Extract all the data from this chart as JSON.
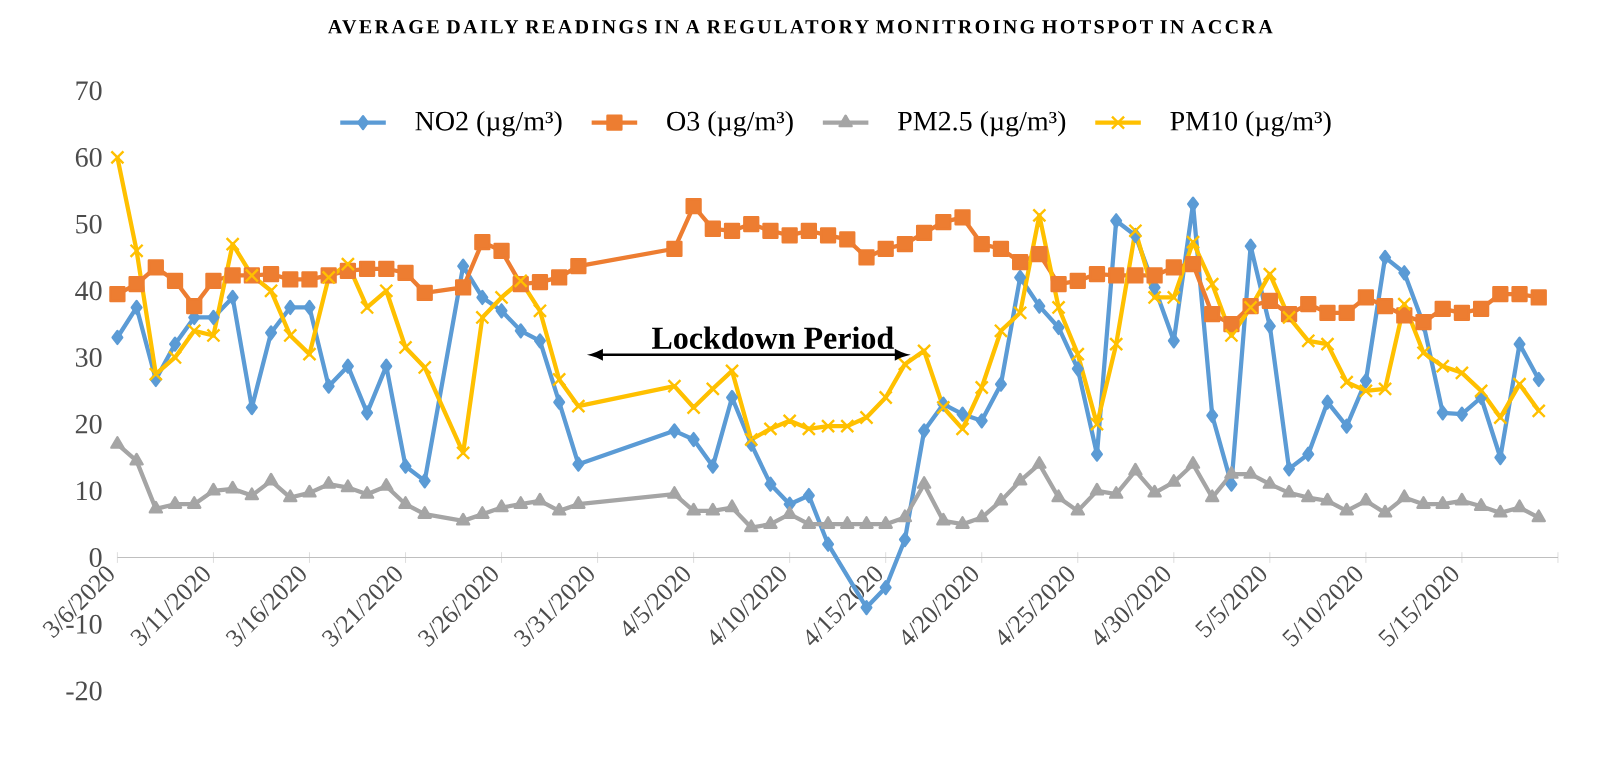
{
  "chart_data": {
    "type": "line",
    "title": "AVERAGE DAILY READINGS IN A REGULATORY MONITROING HOTSPOT IN ACCRA",
    "x": [
      "2020-03-06",
      "2020-03-07",
      "2020-03-08",
      "2020-03-09",
      "2020-03-10",
      "2020-03-11",
      "2020-03-12",
      "2020-03-13",
      "2020-03-14",
      "2020-03-15",
      "2020-03-16",
      "2020-03-17",
      "2020-03-18",
      "2020-03-19",
      "2020-03-20",
      "2020-03-21",
      "2020-03-22",
      "2020-03-24",
      "2020-03-25",
      "2020-03-26",
      "2020-03-27",
      "2020-03-28",
      "2020-03-29",
      "2020-03-30",
      "2020-04-04",
      "2020-04-05",
      "2020-04-06",
      "2020-04-07",
      "2020-04-08",
      "2020-04-09",
      "2020-04-10",
      "2020-04-11",
      "2020-04-12",
      "2020-04-13",
      "2020-04-14",
      "2020-04-15",
      "2020-04-16",
      "2020-04-17",
      "2020-04-18",
      "2020-04-19",
      "2020-04-20",
      "2020-04-21",
      "2020-04-22",
      "2020-04-23",
      "2020-04-24",
      "2020-04-25",
      "2020-04-26",
      "2020-04-27",
      "2020-04-28",
      "2020-04-29",
      "2020-04-30",
      "2020-05-01",
      "2020-05-02",
      "2020-05-03",
      "2020-05-04",
      "2020-05-05",
      "2020-05-06",
      "2020-05-07",
      "2020-05-08",
      "2020-05-09",
      "2020-05-10",
      "2020-05-11",
      "2020-05-12",
      "2020-05-13",
      "2020-05-14",
      "2020-05-15",
      "2020-05-16",
      "2020-05-17",
      "2020-05-18",
      "2020-05-19"
    ],
    "series": [
      {
        "name": "NO2 (µg/m³)",
        "color": "#5b9bd5",
        "marker": "diamond",
        "x": [
          "2020-03-06",
          "2020-03-07",
          "2020-03-08",
          "2020-03-09",
          "2020-03-10",
          "2020-03-11",
          "2020-03-12",
          "2020-03-13",
          "2020-03-14",
          "2020-03-15",
          "2020-03-16",
          "2020-03-17",
          "2020-03-18",
          "2020-03-19",
          "2020-03-20",
          "2020-03-21",
          "2020-03-22",
          "2020-03-24",
          "2020-03-25",
          "2020-03-26",
          "2020-03-27",
          "2020-03-28",
          "2020-03-29",
          "2020-03-30",
          "2020-04-04",
          "2020-04-05",
          "2020-04-06",
          "2020-04-07",
          "2020-04-08",
          "2020-04-09",
          "2020-04-10",
          "2020-04-11",
          "2020-04-12",
          "2020-04-14",
          "2020-04-15",
          "2020-04-16",
          "2020-04-17",
          "2020-04-18",
          "2020-04-19",
          "2020-04-20",
          "2020-04-21",
          "2020-04-22",
          "2020-04-23",
          "2020-04-24",
          "2020-04-25",
          "2020-04-26",
          "2020-04-27",
          "2020-04-28",
          "2020-04-29",
          "2020-04-30",
          "2020-05-01",
          "2020-05-02",
          "2020-05-03",
          "2020-05-04",
          "2020-05-05",
          "2020-05-06",
          "2020-05-07",
          "2020-05-08",
          "2020-05-09",
          "2020-05-10",
          "2020-05-11",
          "2020-05-12",
          "2020-05-13",
          "2020-05-14",
          "2020-05-15",
          "2020-05-16",
          "2020-05-17",
          "2020-05-18",
          "2020-05-19"
        ],
        "values": [
          33,
          37.5,
          26.7,
          32,
          36,
          36,
          39,
          22.5,
          33.7,
          37.5,
          37.5,
          25.7,
          28.7,
          21.7,
          28.7,
          13.7,
          11.5,
          43.7,
          39,
          37,
          34,
          32.5,
          23.3,
          14,
          19,
          17.7,
          13.7,
          24,
          17,
          11,
          8,
          9.3,
          2,
          -7.5,
          -4.5,
          2.7,
          19,
          23,
          21.5,
          20.5,
          26,
          42,
          37.7,
          34.5,
          28.3,
          15.5,
          50.5,
          48.3,
          40.5,
          32.5,
          53,
          21.3,
          11,
          46.7,
          34.7,
          13.3,
          15.5,
          23.3,
          19.7,
          26.5,
          45,
          42.7,
          35,
          21.7,
          21.5,
          24,
          15,
          32,
          26.7
        ]
      },
      {
        "name": "O3 (µg/m³)",
        "color": "#ed7d31",
        "marker": "square",
        "values": [
          39.5,
          41,
          43.5,
          41.5,
          37.7,
          41.5,
          42.3,
          42.3,
          42.5,
          41.7,
          41.7,
          42.3,
          43,
          43.3,
          43.3,
          42.7,
          39.7,
          40.5,
          47.3,
          46,
          41,
          41.3,
          42,
          43.7,
          46.3,
          52.7,
          49.3,
          49,
          50,
          49,
          48.3,
          49,
          48.3,
          47.7,
          45,
          46.3,
          47,
          48.7,
          50.3,
          51,
          47,
          46.3,
          44.3,
          45.5,
          41,
          41.5,
          42.5,
          42.3,
          42.3,
          42.3,
          43.5,
          44,
          36.5,
          35,
          37.7,
          38.5,
          36.5,
          38,
          36.7,
          36.7,
          39,
          37.7,
          36.3,
          35.3,
          37.3,
          36.7,
          37.3,
          39.5,
          39.5,
          39
        ]
      },
      {
        "name": "PM2.5 (µg/m³)",
        "color": "#a5a5a5",
        "marker": "triangle",
        "values": [
          17,
          14.5,
          7.3,
          8,
          8,
          10,
          10.3,
          9.3,
          11.5,
          9,
          9.7,
          11,
          10.5,
          9.5,
          10.7,
          8,
          6.5,
          5.5,
          6.5,
          7.5,
          8,
          8.5,
          7,
          8,
          9.5,
          7,
          7,
          7.5,
          4.5,
          5,
          6.5,
          5,
          5,
          5,
          5,
          5,
          6,
          11,
          5.5,
          5,
          6,
          8.5,
          11.5,
          14,
          9,
          7,
          10,
          9.5,
          13,
          9.7,
          11.3,
          14,
          9,
          12.5,
          12.5,
          11,
          9.7,
          9,
          8.5,
          7,
          8.5,
          6.7,
          9,
          8,
          8,
          8.5,
          7.7,
          6.7,
          7.5,
          6
        ]
      },
      {
        "name": "PM10 (µg/m³)",
        "color": "#ffc000",
        "marker": "cross",
        "values": [
          60,
          46,
          27.5,
          30,
          34,
          33.3,
          47,
          42.3,
          40,
          33.3,
          30.5,
          42,
          44,
          37.5,
          40,
          31.5,
          28.5,
          15.7,
          36,
          39,
          41.5,
          37,
          26.7,
          22.7,
          25.7,
          22.5,
          25.3,
          28,
          17.7,
          19.3,
          20.5,
          19.3,
          19.7,
          19.7,
          21,
          24,
          29,
          31,
          22.5,
          19.3,
          25.5,
          34,
          36.7,
          51.3,
          37.5,
          30.5,
          20,
          32,
          49,
          39,
          39,
          47.3,
          41,
          33.3,
          37.5,
          42.5,
          36,
          32.5,
          32,
          26.3,
          25,
          25.3,
          38,
          30.7,
          28.7,
          27.7,
          25,
          21,
          26,
          22
        ]
      }
    ],
    "xlim": [
      "2020-03-06",
      "2020-05-20"
    ],
    "xticks": [
      {
        "value": "2020-03-06",
        "label": "3/6/2020"
      },
      {
        "value": "2020-03-11",
        "label": "3/11/2020"
      },
      {
        "value": "2020-03-16",
        "label": "3/16/2020"
      },
      {
        "value": "2020-03-21",
        "label": "3/21/2020"
      },
      {
        "value": "2020-03-26",
        "label": "3/26/2020"
      },
      {
        "value": "2020-03-31",
        "label": "3/31/2020"
      },
      {
        "value": "2020-04-05",
        "label": "4/5/2020"
      },
      {
        "value": "2020-04-10",
        "label": "4/10/2020"
      },
      {
        "value": "2020-04-15",
        "label": "4/15/2020"
      },
      {
        "value": "2020-04-20",
        "label": "4/20/2020"
      },
      {
        "value": "2020-04-25",
        "label": "4/25/2020"
      },
      {
        "value": "2020-04-30",
        "label": "4/30/2020"
      },
      {
        "value": "2020-05-05",
        "label": "5/5/2020"
      },
      {
        "value": "2020-05-10",
        "label": "5/10/2020"
      },
      {
        "value": "2020-05-15",
        "label": "5/15/2020"
      },
      {
        "value": "2020-05-20",
        "label": null
      }
    ],
    "ylim": [
      -20,
      70
    ],
    "yticks": [
      -20,
      -10,
      0,
      10,
      20,
      30,
      40,
      50,
      60,
      70
    ],
    "annotations": [
      "Lockdown Period"
    ],
    "legend": "top"
  }
}
